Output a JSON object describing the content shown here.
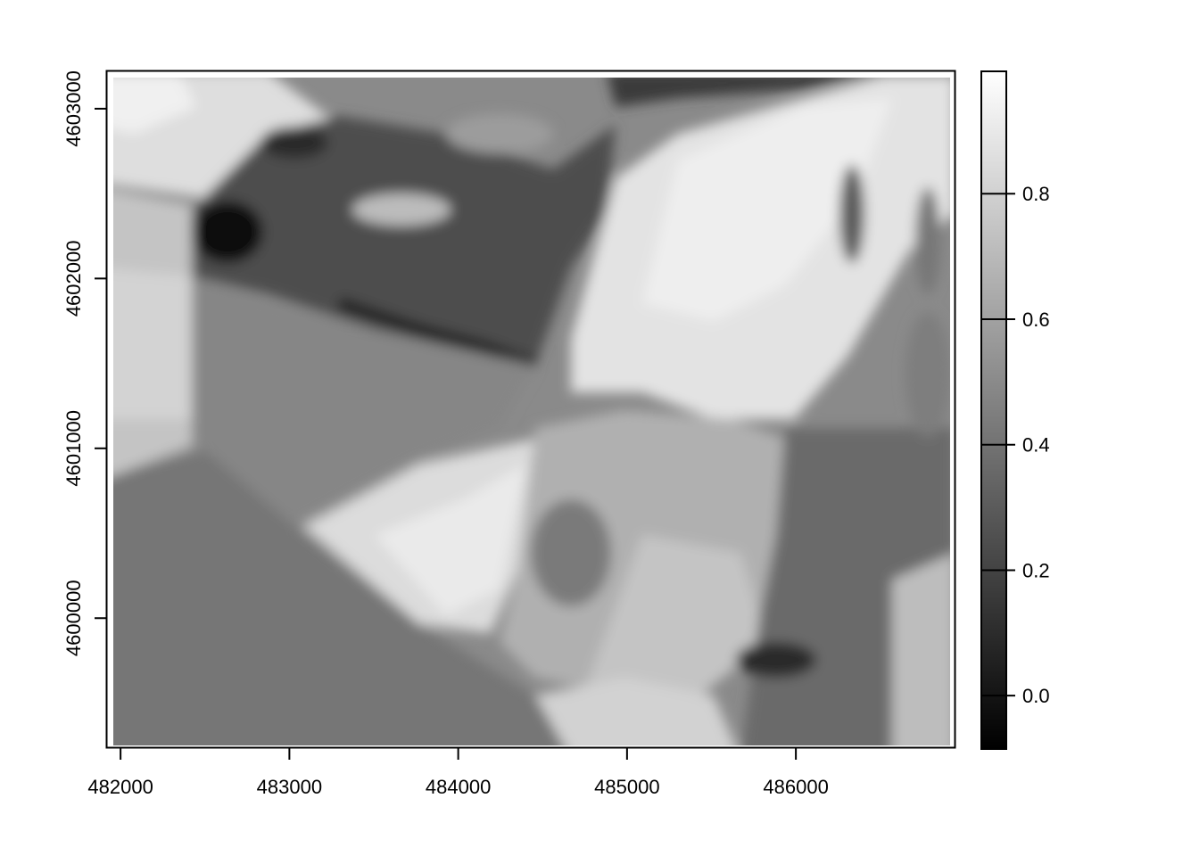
{
  "chart_data": {
    "type": "heatmap",
    "title": "",
    "xlabel": "",
    "ylabel": "",
    "colormap": "grayscale",
    "color_low": "#000000",
    "color_high": "#ffffff",
    "xlim": [
      481920,
      486940
    ],
    "ylim": [
      4599240,
      4603220
    ],
    "data_extent": {
      "x": [
        481950,
        486920
      ],
      "y": [
        4599280,
        4603180
      ]
    },
    "x_ticks": [
      {
        "value": 482000,
        "label": "482000"
      },
      {
        "value": 483000,
        "label": "483000"
      },
      {
        "value": 484000,
        "label": "484000"
      },
      {
        "value": 485000,
        "label": "485000"
      },
      {
        "value": 486000,
        "label": "486000"
      }
    ],
    "y_ticks": [
      {
        "value": 4600000,
        "label": "4600000"
      },
      {
        "value": 4601000,
        "label": "4601000"
      },
      {
        "value": 4602000,
        "label": "4602000"
      },
      {
        "value": 4603000,
        "label": "4603000"
      }
    ],
    "colorbar": {
      "range": [
        -0.085,
        0.995
      ],
      "ticks": [
        {
          "value": 0.0,
          "label": "0.0"
        },
        {
          "value": 0.2,
          "label": "0.2"
        },
        {
          "value": 0.4,
          "label": "0.4"
        },
        {
          "value": 0.6,
          "label": "0.6"
        },
        {
          "value": 0.8,
          "label": "0.8"
        }
      ]
    }
  }
}
